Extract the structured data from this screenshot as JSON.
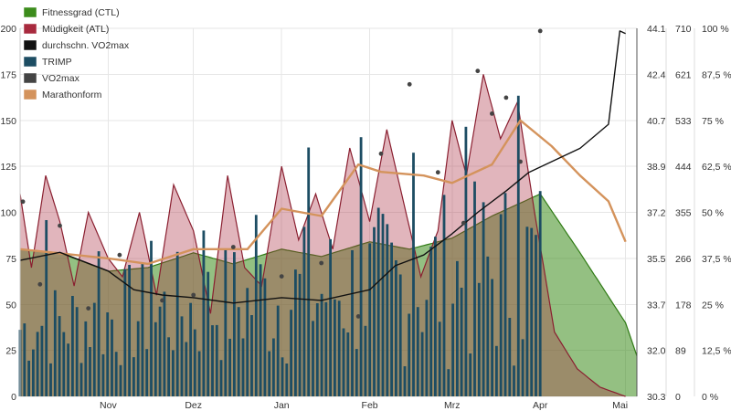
{
  "chart_data": {
    "type": "line",
    "title": "",
    "xlabel": "",
    "ylabel": "",
    "x_ticks": [
      "Nov",
      "Dez",
      "Jan",
      "Feb",
      "Mrz",
      "Apr",
      "Mai"
    ],
    "y_axes": [
      {
        "id": "left",
        "range": [
          0,
          200
        ],
        "ticks": [
          "0",
          "25",
          "50",
          "75",
          "100",
          "125",
          "150",
          "175",
          "200"
        ]
      },
      {
        "id": "vo2max",
        "range": [
          30.3,
          44.1
        ],
        "ticks": [
          "30.3",
          "32.0",
          "33.7",
          "35.5",
          "37.2",
          "38.9",
          "40.7",
          "42.4",
          "44.1"
        ]
      },
      {
        "id": "trimp",
        "range": [
          0,
          710
        ],
        "ticks": [
          "0",
          "89",
          "178",
          "266",
          "355",
          "444",
          "533",
          "621",
          "710"
        ]
      },
      {
        "id": "form",
        "range": [
          0,
          100
        ],
        "ticks": [
          "0 %",
          "12,5 %",
          "25 %",
          "37,5 %",
          "50 %",
          "62,5 %",
          "75 %",
          "87,5 %",
          "100 %"
        ]
      }
    ],
    "grid": true,
    "legend_position": "top-left",
    "legend": [
      {
        "key": "ctl",
        "label": "Fitnessgrad (CTL)",
        "color": "#3c8c1c"
      },
      {
        "key": "atl",
        "label": "Müdigkeit (ATL)",
        "color": "#a82a3e"
      },
      {
        "key": "avgvo2",
        "label": "durchschn. VO2max",
        "color": "#111111"
      },
      {
        "key": "trimp",
        "label": "TRIMP",
        "color": "#1d4d63"
      },
      {
        "key": "vo2",
        "label": "VO2max",
        "color": "#444444"
      },
      {
        "key": "form",
        "label": "Marathonform",
        "color": "#d4935c"
      }
    ],
    "series": [
      {
        "key": "ctl",
        "axis": "left",
        "x": [
          "2015-10-01",
          "2015-10-15",
          "2015-11-01",
          "2015-11-15",
          "2015-12-01",
          "2015-12-15",
          "2016-01-01",
          "2016-01-15",
          "2016-02-01",
          "2016-02-15",
          "2016-03-01",
          "2016-03-15",
          "2016-04-01",
          "2016-04-15",
          "2016-05-01",
          "2016-05-05"
        ],
        "values": [
          80,
          78,
          68,
          70,
          78,
          72,
          80,
          76,
          84,
          80,
          86,
          98,
          110,
          78,
          40,
          22
        ]
      },
      {
        "key": "atl",
        "axis": "left",
        "x": [
          "2015-10-01",
          "2015-10-05",
          "2015-10-10",
          "2015-10-15",
          "2015-10-20",
          "2015-10-25",
          "2015-11-01",
          "2015-11-06",
          "2015-11-12",
          "2015-11-18",
          "2015-11-24",
          "2015-12-01",
          "2015-12-07",
          "2015-12-13",
          "2015-12-19",
          "2015-12-25",
          "2016-01-01",
          "2016-01-07",
          "2016-01-13",
          "2016-01-19",
          "2016-01-25",
          "2016-02-01",
          "2016-02-07",
          "2016-02-13",
          "2016-02-19",
          "2016-02-25",
          "2016-03-01",
          "2016-03-06",
          "2016-03-12",
          "2016-03-18",
          "2016-03-24",
          "2016-03-30",
          "2016-04-06",
          "2016-04-14",
          "2016-04-22",
          "2016-05-01"
        ],
        "values": [
          110,
          70,
          120,
          95,
          60,
          100,
          75,
          65,
          100,
          55,
          115,
          90,
          45,
          120,
          70,
          60,
          125,
          85,
          110,
          80,
          135,
          95,
          145,
          105,
          65,
          90,
          150,
          120,
          175,
          140,
          160,
          100,
          35,
          15,
          5,
          0
        ]
      },
      {
        "key": "avgvo2",
        "axis": "vo2max",
        "x": [
          "2015-10-01",
          "2015-10-15",
          "2015-11-01",
          "2015-11-10",
          "2015-11-20",
          "2015-12-01",
          "2015-12-15",
          "2016-01-01",
          "2016-01-15",
          "2016-02-01",
          "2016-02-10",
          "2016-02-20",
          "2016-03-01",
          "2016-03-10",
          "2016-03-20",
          "2016-03-28",
          "2016-04-05",
          "2016-04-15",
          "2016-04-25",
          "2016-04-29",
          "2016-05-01"
        ],
        "values": [
          35.4,
          35.7,
          35.0,
          34.3,
          34.1,
          34.0,
          33.8,
          34.0,
          33.9,
          34.3,
          35.2,
          35.6,
          36.4,
          37.2,
          38.0,
          38.7,
          39.1,
          39.6,
          40.5,
          44.0,
          43.9
        ]
      },
      {
        "key": "vo2",
        "axis": "vo2max",
        "x": [
          "2015-10-02",
          "2015-10-08",
          "2015-10-15",
          "2015-10-25",
          "2015-11-05",
          "2015-11-20",
          "2015-12-01",
          "2015-12-15",
          "2016-01-01",
          "2016-01-15",
          "2016-01-28",
          "2016-02-05",
          "2016-02-15",
          "2016-02-25",
          "2016-03-05",
          "2016-03-10",
          "2016-03-15",
          "2016-03-20",
          "2016-03-25",
          "2016-04-01"
        ],
        "values": [
          37.6,
          34.5,
          36.7,
          33.6,
          35.6,
          33.9,
          34.1,
          35.9,
          34.8,
          35.3,
          33.3,
          39.4,
          42.0,
          38.7,
          36.8,
          42.5,
          40.9,
          41.5,
          39.1,
          44.0
        ]
      },
      {
        "key": "form",
        "axis": "form",
        "x": [
          "2015-10-01",
          "2015-11-01",
          "2015-11-15",
          "2015-12-01",
          "2015-12-20",
          "2016-01-01",
          "2016-01-15",
          "2016-01-28",
          "2016-02-05",
          "2016-02-20",
          "2016-03-01",
          "2016-03-15",
          "2016-03-25",
          "2016-04-05",
          "2016-04-15",
          "2016-04-25",
          "2016-05-01"
        ],
        "values": [
          40.0,
          37.5,
          36.0,
          40.0,
          40.0,
          51.0,
          49.0,
          63.0,
          61.0,
          60.0,
          58.0,
          63.0,
          75.0,
          68.0,
          60.0,
          53.0,
          42.0
        ]
      }
    ],
    "trimp_bars": {
      "axis": "trimp",
      "x_start": "2015-10-01",
      "x_end": "2016-04-01",
      "count": 120,
      "typical_range": [
        50,
        450
      ],
      "peak_values": [
        340,
        280,
        300,
        320,
        350,
        480,
        500,
        470,
        520,
        580
      ]
    }
  }
}
